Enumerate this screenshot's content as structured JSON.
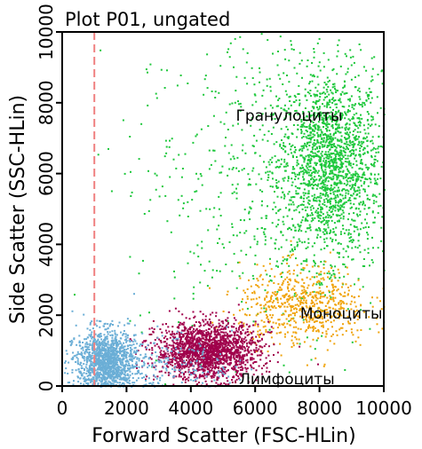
{
  "chart_data": {
    "type": "scatter",
    "title": "Plot P01, ungated",
    "xlabel": "Forward Scatter (FSC-HLin)",
    "ylabel": "Side Scatter (SSC-HLin)",
    "xlim": [
      0,
      10000
    ],
    "ylim": [
      0,
      10000
    ],
    "x_ticks": [
      "0",
      "2000",
      "4000",
      "6000",
      "8000",
      "10000"
    ],
    "y_ticks": [
      "0",
      "2000",
      "4000",
      "6000",
      "8000",
      "10000"
    ],
    "gate_x": 1000,
    "grid": false,
    "series": [
      {
        "name": "Гранулоциты",
        "color": "#1ec83c",
        "label_at": [
          5400,
          7500
        ],
        "clusters": [
          {
            "cx": 8300,
            "cy": 6300,
            "sx": 800,
            "sy": 1300,
            "n": 1700
          },
          {
            "cx": 6500,
            "cy": 5800,
            "sx": 2200,
            "sy": 2400,
            "n": 700
          }
        ]
      },
      {
        "name": "Моноциты",
        "color": "#f0a30a",
        "label_at": [
          7400,
          1900
        ],
        "clusters": [
          {
            "cx": 7500,
            "cy": 2300,
            "sx": 1000,
            "sy": 550,
            "n": 650
          }
        ]
      },
      {
        "name": "Лимфоциты",
        "color": "#a0004b",
        "label_at": [
          5500,
          50
        ],
        "clusters": [
          {
            "cx": 4500,
            "cy": 1000,
            "sx": 800,
            "sy": 400,
            "n": 1800
          }
        ]
      },
      {
        "name": "",
        "color": "#6baed6",
        "clusters": [
          {
            "cx": 1350,
            "cy": 700,
            "sx": 450,
            "sy": 450,
            "n": 1300
          },
          {
            "cx": 2400,
            "cy": 500,
            "sx": 1400,
            "sy": 500,
            "n": 350
          }
        ]
      }
    ]
  }
}
